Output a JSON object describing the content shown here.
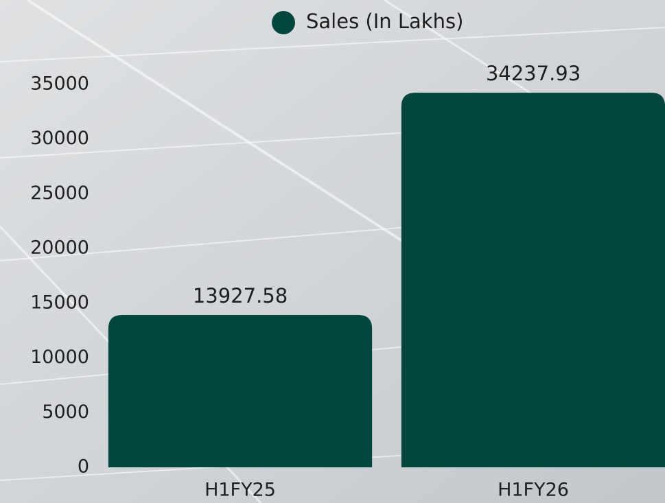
{
  "chart_data": {
    "type": "bar",
    "legend": "top",
    "categories": [
      "H1FY25",
      "H1FY26"
    ],
    "series": [
      {
        "name": "Sales (In Lakhs)",
        "color": "#02463e",
        "values": [
          13927.58,
          34237.93
        ]
      }
    ],
    "ylim": [
      0,
      35000
    ],
    "yticks": [
      0,
      5000,
      10000,
      15000,
      20000,
      25000,
      30000,
      35000
    ]
  }
}
